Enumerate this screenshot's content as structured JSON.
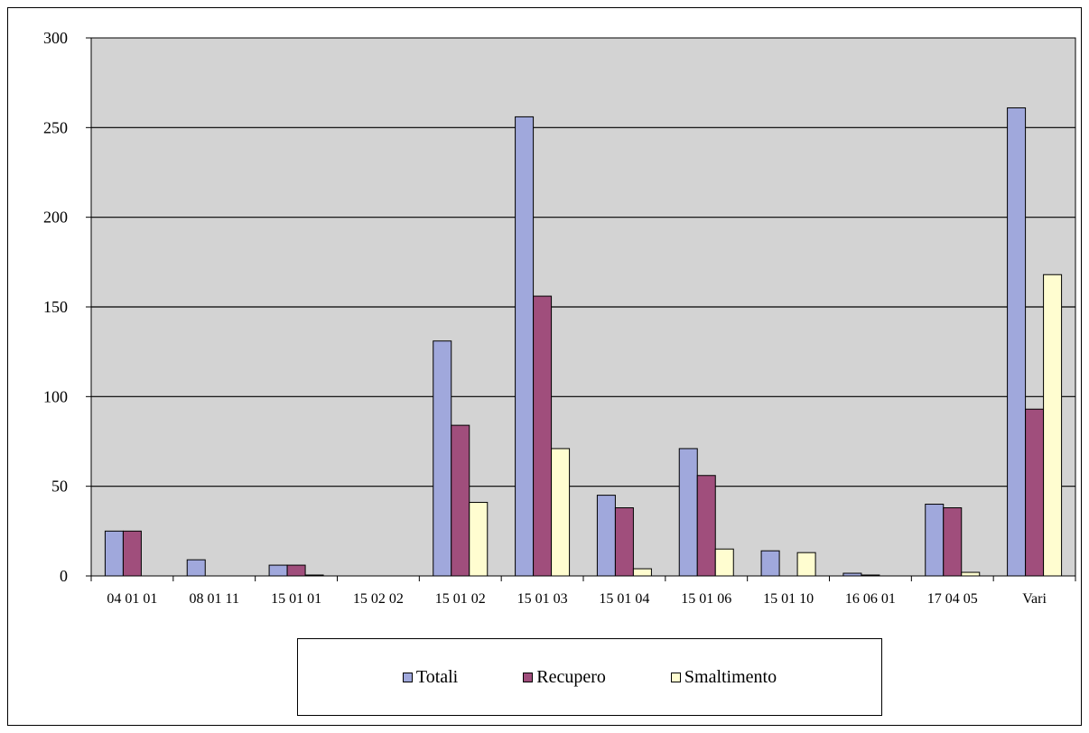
{
  "chart_data": {
    "type": "bar",
    "categories": [
      "04 01 01",
      "08 01 11",
      "15 01 01",
      "15 02 02",
      "15 01 02",
      "15 01 03",
      "15 01 04",
      "15 01 06",
      "15 01 10",
      "16 06 01",
      "17 04 05",
      "Vari"
    ],
    "series": [
      {
        "name": "Totali",
        "color": "#a0a8dc",
        "values": [
          25,
          9,
          6,
          0,
          131,
          256,
          45,
          71,
          14,
          1.5,
          40,
          261
        ]
      },
      {
        "name": "Recupero",
        "color": "#a04e7c",
        "values": [
          25,
          0,
          6,
          0,
          84,
          156,
          38,
          56,
          0,
          0.5,
          38,
          93
        ]
      },
      {
        "name": "Smaltimento",
        "color": "#fffdd0",
        "values": [
          0,
          0,
          0.5,
          0,
          41,
          71,
          4,
          15,
          13,
          0,
          2,
          168
        ]
      }
    ],
    "yticks": [
      0,
      50,
      100,
      150,
      200,
      250,
      300
    ],
    "ylim": [
      0,
      300
    ],
    "grid": true,
    "plot_background": "#d3d3d3",
    "legend_position": "bottom"
  }
}
